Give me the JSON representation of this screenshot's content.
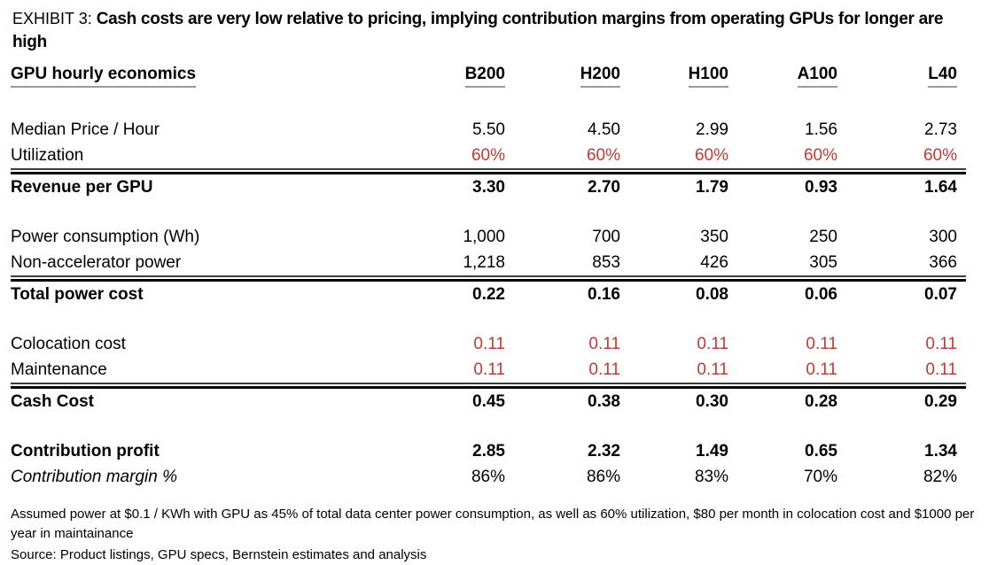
{
  "colors": {
    "accent_red": "#C03A31",
    "text": "#000000",
    "rule": "#000000"
  },
  "title": {
    "prefix": "EXHIBIT 3:",
    "text": "Cash costs are very low relative to pricing, implying contribution margins from operating GPUs for longer are high"
  },
  "table": {
    "corner_label": "GPU hourly economics",
    "columns": [
      "B200",
      "H200",
      "H100",
      "A100",
      "L40"
    ],
    "rows": [
      {
        "label": "Median Price / Hour",
        "style": "plain",
        "values": [
          "5.50",
          "4.50",
          "2.99",
          "1.56",
          "2.73"
        ]
      },
      {
        "label": "Utilization",
        "style": "red",
        "values": [
          "60%",
          "60%",
          "60%",
          "60%",
          "60%"
        ]
      },
      {
        "label": "Revenue per GPU",
        "style": "bold",
        "values": [
          "3.30",
          "2.70",
          "1.79",
          "0.93",
          "1.64"
        ]
      },
      {
        "label": "Power consumption (Wh)",
        "style": "plain",
        "values": [
          "1,000",
          "700",
          "350",
          "250",
          "300"
        ]
      },
      {
        "label": "Non-accelerator power",
        "style": "plain",
        "values": [
          "1,218",
          "853",
          "426",
          "305",
          "366"
        ]
      },
      {
        "label": "Total power cost",
        "style": "bold",
        "values": [
          "0.22",
          "0.16",
          "0.08",
          "0.06",
          "0.07"
        ]
      },
      {
        "label": "Colocation cost",
        "style": "red",
        "values": [
          "0.11",
          "0.11",
          "0.11",
          "0.11",
          "0.11"
        ]
      },
      {
        "label": "Maintenance",
        "style": "red",
        "values": [
          "0.11",
          "0.11",
          "0.11",
          "0.11",
          "0.11"
        ]
      },
      {
        "label": "Cash Cost",
        "style": "bold",
        "values": [
          "0.45",
          "0.38",
          "0.30",
          "0.28",
          "0.29"
        ]
      },
      {
        "label": "Contribution profit",
        "style": "bold",
        "values": [
          "2.85",
          "2.32",
          "1.49",
          "0.65",
          "1.34"
        ]
      },
      {
        "label": "Contribution margin %",
        "style": "italic",
        "values": [
          "86%",
          "86%",
          "83%",
          "70%",
          "82%"
        ]
      }
    ]
  },
  "footnotes": {
    "assumptions": "Assumed power at $0.1 / KWh with GPU as 45% of total data center power consumption, as well as 60% utilization, $80 per month in colocation cost and $1000 per year in maintainance",
    "source": "Source: Product listings, GPU specs, Bernstein estimates and analysis"
  },
  "chart_data": {
    "type": "table",
    "title": "GPU hourly economics",
    "exhibit": "EXHIBIT 3: Cash costs are very low relative to pricing, implying contribution margins from operating GPUs for longer are high",
    "columns": [
      "B200",
      "H200",
      "H100",
      "A100",
      "L40"
    ],
    "rows": [
      {
        "label": "Median Price / Hour",
        "values": [
          5.5,
          4.5,
          2.99,
          1.56,
          2.73
        ]
      },
      {
        "label": "Utilization",
        "values": [
          "60%",
          "60%",
          "60%",
          "60%",
          "60%"
        ]
      },
      {
        "label": "Revenue per GPU",
        "values": [
          3.3,
          2.7,
          1.79,
          0.93,
          1.64
        ]
      },
      {
        "label": "Power consumption (Wh)",
        "values": [
          1000,
          700,
          350,
          250,
          300
        ]
      },
      {
        "label": "Non-accelerator power",
        "values": [
          1218,
          853,
          426,
          305,
          366
        ]
      },
      {
        "label": "Total power cost",
        "values": [
          0.22,
          0.16,
          0.08,
          0.06,
          0.07
        ]
      },
      {
        "label": "Colocation cost",
        "values": [
          0.11,
          0.11,
          0.11,
          0.11,
          0.11
        ]
      },
      {
        "label": "Maintenance",
        "values": [
          0.11,
          0.11,
          0.11,
          0.11,
          0.11
        ]
      },
      {
        "label": "Cash Cost",
        "values": [
          0.45,
          0.38,
          0.3,
          0.28,
          0.29
        ]
      },
      {
        "label": "Contribution profit",
        "values": [
          2.85,
          2.32,
          1.49,
          0.65,
          1.34
        ]
      },
      {
        "label": "Contribution margin %",
        "values": [
          "86%",
          "86%",
          "83%",
          "70%",
          "82%"
        ]
      }
    ],
    "notes": [
      "Assumed power at $0.1 / KWh with GPU as 45% of total data center power consumption, as well as 60% utilization, $80 per month in colocation cost and $1000 per year in maintainance",
      "Source: Product listings, GPU specs, Bernstein estimates and analysis"
    ]
  }
}
